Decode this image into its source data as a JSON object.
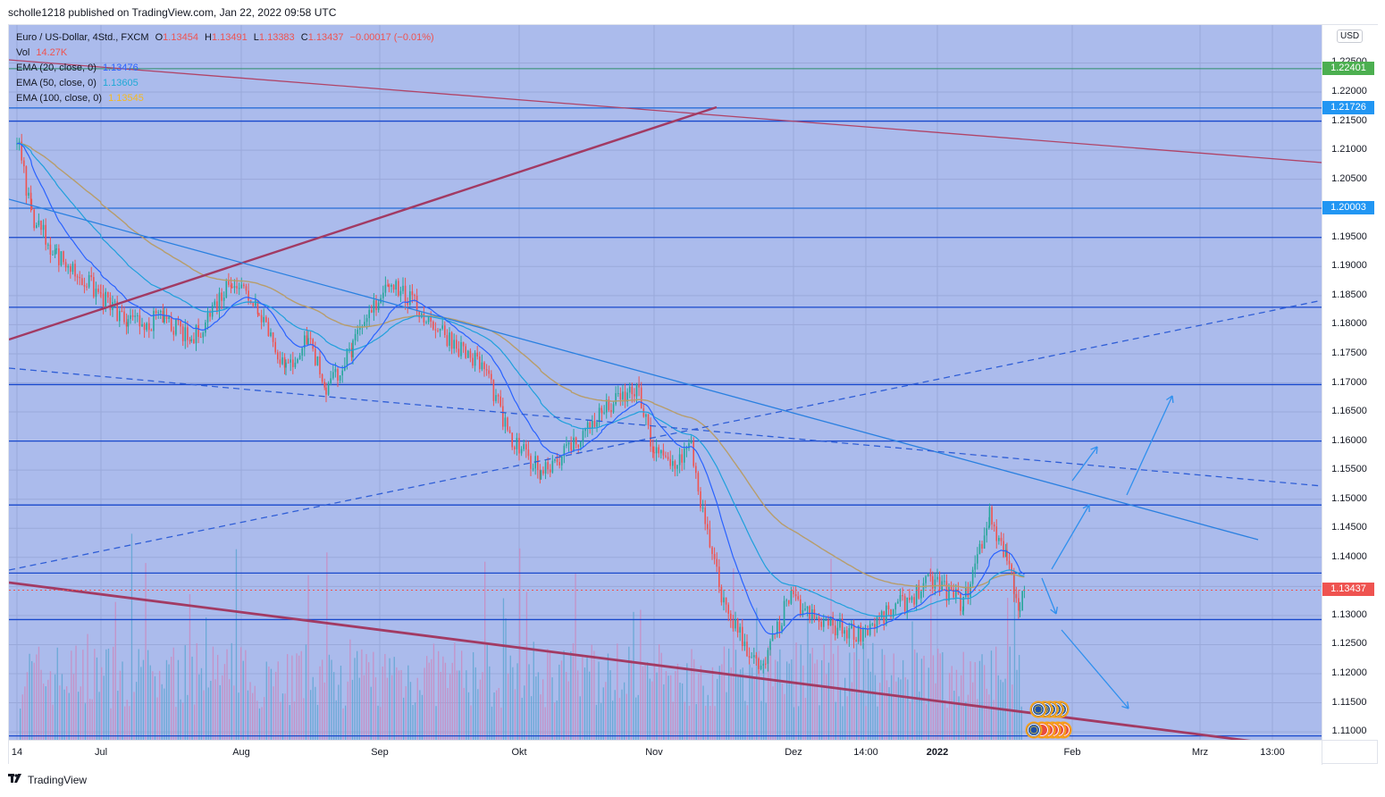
{
  "header": {
    "published": "scholle1218 published on TradingView.com, Jan 22, 2022 09:58 UTC"
  },
  "legend": {
    "symbol": "Euro / US-Dollar, 4Std., FXCM",
    "o_label": "O",
    "o": "1.13454",
    "h_label": "H",
    "h": "1.13491",
    "l_label": "L",
    "l": "1.13383",
    "c_label": "C",
    "c": "1.13437",
    "change": "−0.00017 (−0.01%)",
    "vol_label": "Vol",
    "vol": "14.27K",
    "ema20_label": "EMA (20, close, 0)",
    "ema20": "1.13476",
    "ema50_label": "EMA (50, close, 0)",
    "ema50": "1.13605",
    "ema100_label": "EMA (100, close, 0)",
    "ema100": "1.13545"
  },
  "price_axis": {
    "currency": "USD",
    "ticks": [
      "1.22500",
      "1.22000",
      "1.21500",
      "1.21000",
      "1.20500",
      "1.19500",
      "1.19000",
      "1.18500",
      "1.18000",
      "1.17500",
      "1.17000",
      "1.16500",
      "1.16000",
      "1.15500",
      "1.15000",
      "1.14500",
      "1.14000",
      "1.13000",
      "1.12500",
      "1.12000",
      "1.11500",
      "1.11000"
    ],
    "badges": [
      {
        "value": "1.22401",
        "color": "#4caf50"
      },
      {
        "value": "1.21726",
        "color": "#2196f3"
      },
      {
        "value": "1.20003",
        "color": "#2196f3"
      },
      {
        "value": "1.13437",
        "color": "#ef5350"
      }
    ]
  },
  "time_axis": {
    "labels": [
      "14",
      "Jul",
      "Aug",
      "Sep",
      "Okt",
      "Nov",
      "Dez",
      "14:00",
      "2022",
      "Feb",
      "Mrz",
      "13:00"
    ],
    "bold": [
      "2022"
    ]
  },
  "footer": {
    "brand": "TradingView",
    "logo": "TV-logo-icon"
  },
  "colors": {
    "background": "#abbbec",
    "up": "#26a69a",
    "down": "#ef5350",
    "ema20": "#2962ff",
    "ema50": "#2196f3",
    "ema100": "#b79d6b",
    "hline": "#1848cc",
    "trend_red": "#a23a63"
  },
  "chart_data": {
    "type": "candlestick",
    "title": "Euro / US-Dollar, 4Std., FXCM",
    "xlabel": "",
    "ylabel": "USD",
    "ylim": [
      1.1085,
      1.2305
    ],
    "x_ticks": [
      "14",
      "Jul",
      "Aug",
      "Sep",
      "Okt",
      "Nov",
      "Dez",
      "14:00",
      "2022",
      "Feb",
      "Mrz",
      "13:00"
    ],
    "y_ticks": [
      1.11,
      1.115,
      1.12,
      1.125,
      1.13,
      1.135,
      1.14,
      1.145,
      1.15,
      1.155,
      1.16,
      1.165,
      1.17,
      1.175,
      1.18,
      1.185,
      1.19,
      1.195,
      1.2,
      1.205,
      1.21,
      1.215,
      1.22,
      1.225
    ],
    "last_price": 1.13437,
    "approx_close_path": [
      {
        "date": "2021-06-14",
        "close": 1.212
      },
      {
        "date": "2021-06-17",
        "close": 1.199
      },
      {
        "date": "2021-06-22",
        "close": 1.192
      },
      {
        "date": "2021-07-01",
        "close": 1.185
      },
      {
        "date": "2021-07-07",
        "close": 1.18
      },
      {
        "date": "2021-07-15",
        "close": 1.181
      },
      {
        "date": "2021-07-21",
        "close": 1.177
      },
      {
        "date": "2021-07-30",
        "close": 1.188
      },
      {
        "date": "2021-08-05",
        "close": 1.183
      },
      {
        "date": "2021-08-11",
        "close": 1.172
      },
      {
        "date": "2021-08-16",
        "close": 1.178
      },
      {
        "date": "2021-08-20",
        "close": 1.169
      },
      {
        "date": "2021-08-26",
        "close": 1.176
      },
      {
        "date": "2021-09-03",
        "close": 1.188
      },
      {
        "date": "2021-09-10",
        "close": 1.182
      },
      {
        "date": "2021-09-17",
        "close": 1.177
      },
      {
        "date": "2021-09-24",
        "close": 1.172
      },
      {
        "date": "2021-09-29",
        "close": 1.16
      },
      {
        "date": "2021-10-06",
        "close": 1.155
      },
      {
        "date": "2021-10-13",
        "close": 1.159
      },
      {
        "date": "2021-10-20",
        "close": 1.165
      },
      {
        "date": "2021-10-28",
        "close": 1.169
      },
      {
        "date": "2021-11-01",
        "close": 1.158
      },
      {
        "date": "2021-11-05",
        "close": 1.156
      },
      {
        "date": "2021-11-09",
        "close": 1.159
      },
      {
        "date": "2021-11-12",
        "close": 1.145
      },
      {
        "date": "2021-11-16",
        "close": 1.132
      },
      {
        "date": "2021-11-24",
        "close": 1.12
      },
      {
        "date": "2021-11-30",
        "close": 1.133
      },
      {
        "date": "2021-12-06",
        "close": 1.129
      },
      {
        "date": "2021-12-15",
        "close": 1.127
      },
      {
        "date": "2021-12-21",
        "close": 1.13
      },
      {
        "date": "2021-12-31",
        "close": 1.136
      },
      {
        "date": "2022-01-07",
        "close": 1.132
      },
      {
        "date": "2022-01-13",
        "close": 1.147
      },
      {
        "date": "2022-01-17",
        "close": 1.14
      },
      {
        "date": "2022-01-20",
        "close": 1.131
      },
      {
        "date": "2022-01-21",
        "close": 1.13437
      }
    ],
    "series": [
      {
        "name": "EMA (20, close, 0)",
        "last": 1.13476
      },
      {
        "name": "EMA (50, close, 0)",
        "last": 1.13605
      },
      {
        "name": "EMA (100, close, 0)",
        "last": 1.13545
      },
      {
        "name": "Vol",
        "last": "14.27K"
      }
    ],
    "horizontal_levels": [
      1.22401,
      1.21726,
      1.215,
      1.20003,
      1.195,
      1.183,
      1.1697,
      1.16,
      1.149,
      1.1373,
      1.1293,
      1.1093
    ],
    "annotations": [
      "Red long-term descending trendline from ~1.2255 (Jun) to ~1.208 (Mrz)",
      "Red ascending trendline from ~1.1770 (Jun) to ~1.2172 (Nov)",
      "Red descending support line from ~1.1365 (Jun) to ~1.109 (Mrz)",
      "Blue descending trendline from ~1.2020 (Jun) to ~1.1430 (Feb)",
      "Blue dashed ascending channel line from ~1.1375 (Jun) to ~1.1845 (Mrz)",
      "Blue dashed descending line from ~1.1725 (Jun) to ~1.1525 (Mrz)",
      "Projection arrows: up to ~1.149, up to ~1.159, up to ~1.168, down to ~1.131, down to ~1.115"
    ],
    "grid": true,
    "legend_position": "top-left"
  }
}
